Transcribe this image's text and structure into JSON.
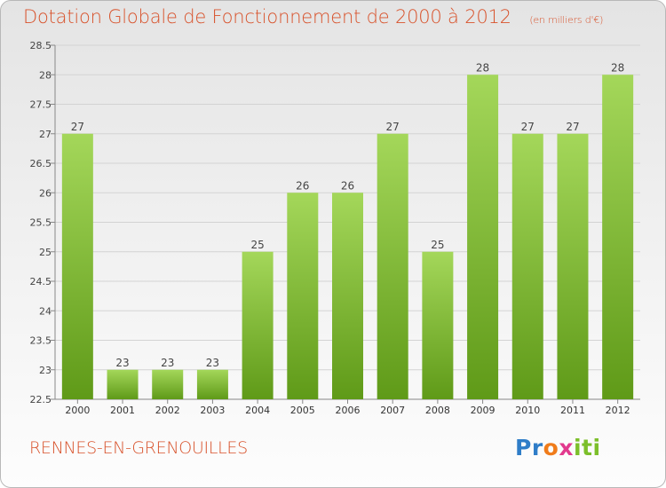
{
  "title": "Dotation Globale de Fonctionnement de 2000 à 2012",
  "unit_note": "(en milliers d'€)",
  "commune": "RENNES-EN-GRENOUILLES",
  "logo": {
    "text": "Proxiti",
    "colors": [
      "#2f7dc8",
      "#f07c1b",
      "#e23a8e",
      "#7cbf2a"
    ]
  },
  "colors": {
    "title": "#d8522b",
    "bar_top": "#a4d75a",
    "bar_bottom": "#5f9a18",
    "grid": "#d3d3d3"
  },
  "chart_data": {
    "type": "bar",
    "title": "Dotation Globale de Fonctionnement de 2000 à 2012",
    "subtitle": "(en milliers d'€)",
    "categories": [
      "2000",
      "2001",
      "2002",
      "2003",
      "2004",
      "2005",
      "2006",
      "2007",
      "2008",
      "2009",
      "2010",
      "2011",
      "2012"
    ],
    "values": [
      27,
      23,
      23,
      23,
      25,
      26,
      26,
      27,
      25,
      28,
      27,
      27,
      28
    ],
    "ylim": [
      22.5,
      28.5
    ],
    "yticks": [
      22.5,
      23,
      23.5,
      24,
      24.5,
      25,
      25.5,
      26,
      26.5,
      27,
      27.5,
      28,
      28.5
    ],
    "grid": true,
    "data_labels": true
  }
}
